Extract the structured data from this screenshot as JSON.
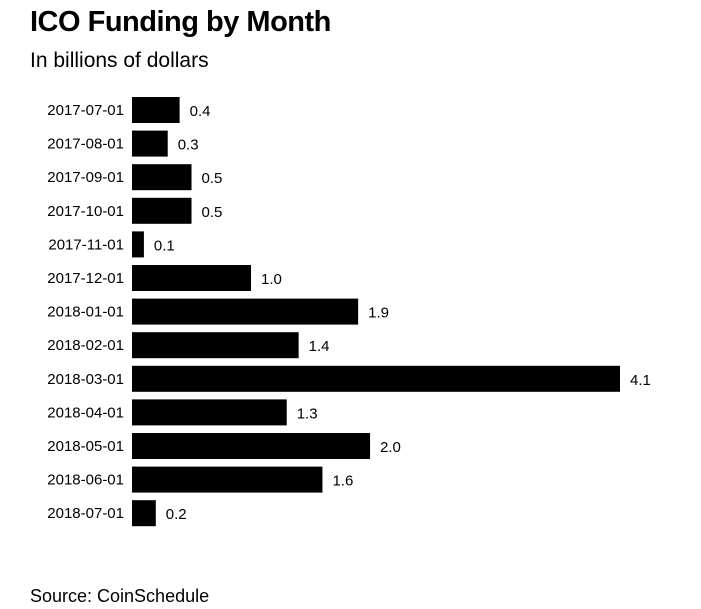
{
  "chart_data": {
    "type": "bar",
    "orientation": "horizontal",
    "title": "ICO Funding by Month",
    "subtitle": "In billions of dollars",
    "categories": [
      "2017-07-01",
      "2017-08-01",
      "2017-09-01",
      "2017-10-01",
      "2017-11-01",
      "2017-12-01",
      "2018-01-01",
      "2018-02-01",
      "2018-03-01",
      "2018-04-01",
      "2018-05-01",
      "2018-06-01",
      "2018-07-01"
    ],
    "values": [
      0.4,
      0.3,
      0.5,
      0.5,
      0.1,
      1.0,
      1.9,
      1.4,
      4.1,
      1.3,
      2.0,
      1.6,
      0.2
    ],
    "value_labels": [
      "0.4",
      "0.3",
      "0.5",
      "0.5",
      "0.1",
      "1.0",
      "1.9",
      "1.4",
      "4.1",
      "1.3",
      "2.0",
      "1.6",
      "0.2"
    ],
    "xlabel": "",
    "ylabel": "",
    "xlim": [
      0,
      4.1
    ],
    "bar_color": "#000000",
    "grid": false,
    "legend": "none",
    "source": "Source: CoinSchedule"
  }
}
